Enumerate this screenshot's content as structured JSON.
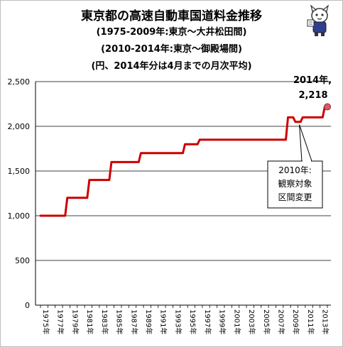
{
  "title_lines": [
    "東京都の高速自動車国道料金推移",
    "(1975-2009年:東京〜大井松田間)",
    "(2010-2014年:東京〜御殿場間)",
    "(円、2014年分は4月までの月次平均)"
  ],
  "chart_data": {
    "type": "line",
    "title": "東京都の高速自動車国道料金推移",
    "subtitle": "(1975-2009年:東京〜大井松田間) (2010-2014年:東京〜御殿場間) (円、2014年分は4月までの月次平均)",
    "x": [
      1975,
      1976,
      1977,
      1978,
      1979,
      1980,
      1981,
      1982,
      1983,
      1984,
      1985,
      1986,
      1987,
      1988,
      1989,
      1990,
      1991,
      1992,
      1993,
      1994,
      1995,
      1996,
      1997,
      1998,
      1999,
      2000,
      2001,
      2002,
      2003,
      2004,
      2005,
      2006,
      2007,
      2008,
      2009,
      2010,
      2011,
      2012,
      2013,
      2014
    ],
    "series": [
      {
        "values": [
          1000,
          1000,
          1000,
          1000,
          1200,
          1200,
          1200,
          1400,
          1400,
          1400,
          1600,
          1600,
          1600,
          1600,
          1700,
          1700,
          1700,
          1700,
          1700,
          1700,
          1800,
          1800,
          1850,
          1850,
          1850,
          1850,
          1850,
          1850,
          1850,
          1850,
          1850,
          1850,
          1850,
          1850,
          2100,
          2050,
          2100,
          2100,
          2100,
          2218
        ],
        "color": "#cc0000"
      }
    ],
    "x_tick_labels": [
      "1975年",
      "1977年",
      "1979年",
      "1981年",
      "1983年",
      "1985年",
      "1987年",
      "1989年",
      "1991年",
      "1993年",
      "1995年",
      "1997年",
      "1999年",
      "2001年",
      "2003年",
      "2005年",
      "2007年",
      "2009年",
      "2011年",
      "2013年"
    ],
    "y_tick_labels": [
      "0",
      "500",
      "1,000",
      "1,500",
      "2,000",
      "2,500"
    ],
    "ylim": [
      0,
      2500
    ],
    "grid": "horizontal",
    "annotations": {
      "last_point_label": [
        "2014年,",
        "2,218"
      ],
      "callout": [
        "2010年:",
        "観察対象",
        "区間変更"
      ]
    },
    "line_color": "#cc0000",
    "marker_color": "#d85a63"
  }
}
